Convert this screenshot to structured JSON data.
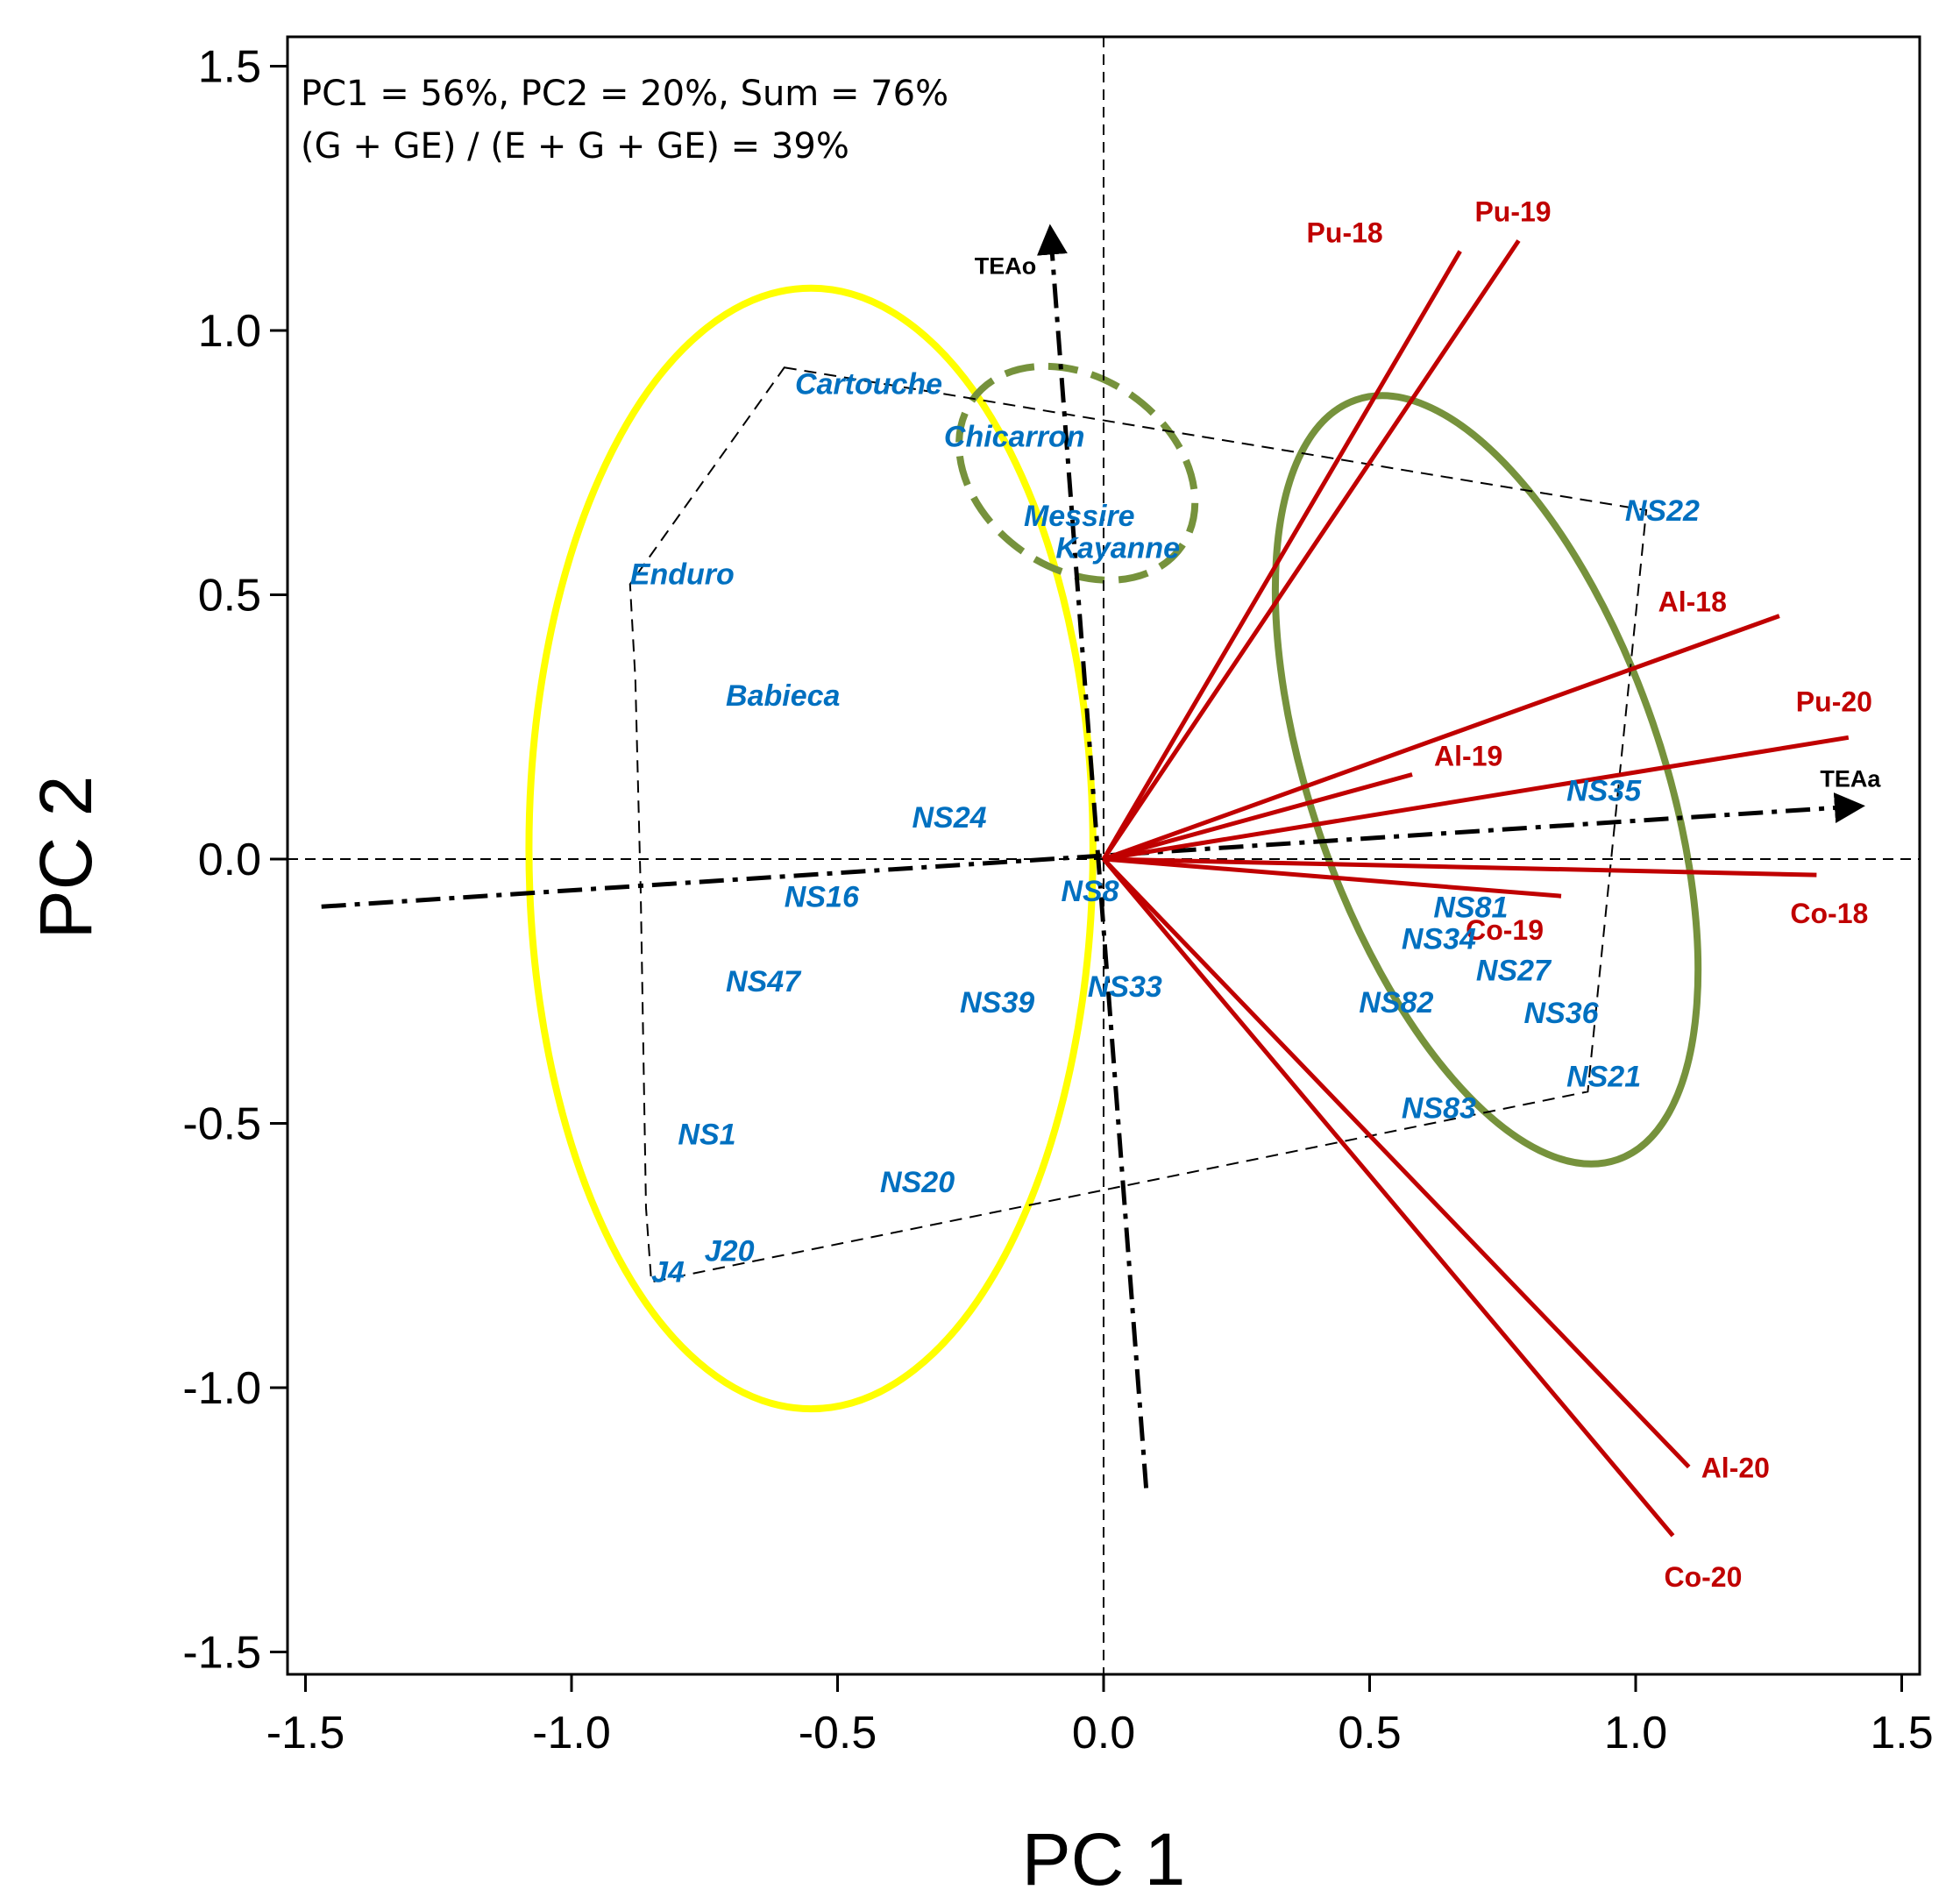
{
  "chart_data": {
    "type": "scatter",
    "title": "",
    "xlabel": "PC 1",
    "ylabel": "PC 2",
    "xlim": [
      -1.52,
      1.53
    ],
    "ylim": [
      -1.55,
      1.56
    ],
    "xticks": [
      -1.5,
      -1.0,
      -0.5,
      0.0,
      0.5,
      1.0,
      1.5
    ],
    "yticks": [
      -1.5,
      -1.0,
      -0.5,
      0.0,
      0.5,
      1.0,
      1.5
    ],
    "xtick_labels": [
      "-1.5",
      "-1.0",
      "-0.5",
      "0.0",
      "0.5",
      "1.0",
      "1.5"
    ],
    "ytick_labels": [
      "-1.5",
      "-1.0",
      "-0.5",
      "0.0",
      "0.5",
      "1.0",
      "1.5"
    ],
    "annotations": {
      "line1": "PC1 =  56%, PC2 = 20%, Sum = 76%",
      "line2": "(G + GE) / (E + G + GE) = 39%"
    },
    "colors": {
      "genotype": "#0070c0",
      "environment": "#c00000",
      "yellow_group": "#ffff00",
      "green_group": "#76923c",
      "axis": "#000000"
    },
    "genotypes": [
      {
        "name": "Cartouche",
        "x": -0.58,
        "y": 0.88
      },
      {
        "name": "Chicarron",
        "x": -0.3,
        "y": 0.78
      },
      {
        "name": "Messire",
        "x": -0.15,
        "y": 0.63
      },
      {
        "name": "Kayanne",
        "x": -0.09,
        "y": 0.57
      },
      {
        "name": "NS22",
        "x": 0.98,
        "y": 0.64
      },
      {
        "name": "Enduro",
        "x": -0.89,
        "y": 0.52
      },
      {
        "name": "Babieca",
        "x": -0.71,
        "y": 0.29
      },
      {
        "name": "NS24",
        "x": -0.36,
        "y": 0.06
      },
      {
        "name": "NS35",
        "x": 0.87,
        "y": 0.11
      },
      {
        "name": "NS16",
        "x": -0.6,
        "y": -0.09
      },
      {
        "name": "NS8",
        "x": -0.08,
        "y": -0.08
      },
      {
        "name": "NS81",
        "x": 0.62,
        "y": -0.11
      },
      {
        "name": "NS34",
        "x": 0.56,
        "y": -0.17
      },
      {
        "name": "NS47",
        "x": -0.71,
        "y": -0.25
      },
      {
        "name": "NS27",
        "x": 0.7,
        "y": -0.23
      },
      {
        "name": "NS39",
        "x": -0.27,
        "y": -0.29
      },
      {
        "name": "NS33",
        "x": -0.03,
        "y": -0.26
      },
      {
        "name": "NS82",
        "x": 0.48,
        "y": -0.29
      },
      {
        "name": "NS36",
        "x": 0.79,
        "y": -0.31
      },
      {
        "name": "NS21",
        "x": 0.87,
        "y": -0.43
      },
      {
        "name": "NS83",
        "x": 0.56,
        "y": -0.49
      },
      {
        "name": "NS1",
        "x": -0.8,
        "y": -0.54
      },
      {
        "name": "NS20",
        "x": -0.42,
        "y": -0.63
      },
      {
        "name": "J20",
        "x": -0.75,
        "y": -0.76
      },
      {
        "name": "J4",
        "x": -0.85,
        "y": -0.8
      }
    ],
    "environments": [
      {
        "name": "Pu-18",
        "x": 0.67,
        "y": 1.15
      },
      {
        "name": "Pu-19",
        "x": 0.78,
        "y": 1.17
      },
      {
        "name": "Al-18",
        "x": 1.27,
        "y": 0.46
      },
      {
        "name": "Pu-20",
        "x": 1.4,
        "y": 0.23
      },
      {
        "name": "Al-19",
        "x": 0.58,
        "y": 0.16
      },
      {
        "name": "Co-19",
        "x": 0.86,
        "y": -0.07
      },
      {
        "name": "Co-18",
        "x": 1.34,
        "y": -0.03
      },
      {
        "name": "Al-20",
        "x": 1.1,
        "y": -1.15
      },
      {
        "name": "Co-20",
        "x": 1.07,
        "y": -1.28
      }
    ],
    "hull": [
      {
        "x": -0.6,
        "y": 0.93
      },
      {
        "x": 1.02,
        "y": 0.66
      },
      {
        "x": 0.91,
        "y": -0.44
      },
      {
        "x": -0.85,
        "y": -0.8
      },
      {
        "x": -0.86,
        "y": -0.66
      },
      {
        "x": -0.87,
        "y": -0.06
      },
      {
        "x": -0.88,
        "y": 0.34
      },
      {
        "x": -0.89,
        "y": 0.52
      }
    ],
    "tea_axes": [
      {
        "name": "TEAo",
        "from": [
          0.08,
          -1.19
        ],
        "to": [
          -0.1,
          1.19
        ]
      },
      {
        "name": "TEAa",
        "from": [
          -1.47,
          -0.09
        ],
        "to": [
          1.42,
          0.1
        ]
      }
    ],
    "ellipses": [
      {
        "group": "yellow",
        "cx": -0.55,
        "cy": 0.02,
        "rx": 0.53,
        "ry": 1.06,
        "angle": 0,
        "dashed": false
      },
      {
        "group": "green-large",
        "cx": 0.72,
        "cy": 0.15,
        "rx": 0.33,
        "ry": 0.76,
        "angle": -19,
        "dashed": false
      },
      {
        "group": "green-dashed",
        "cx": -0.05,
        "cy": 0.73,
        "rx": 0.24,
        "ry": 0.18,
        "angle": 35,
        "dashed": true
      }
    ]
  }
}
